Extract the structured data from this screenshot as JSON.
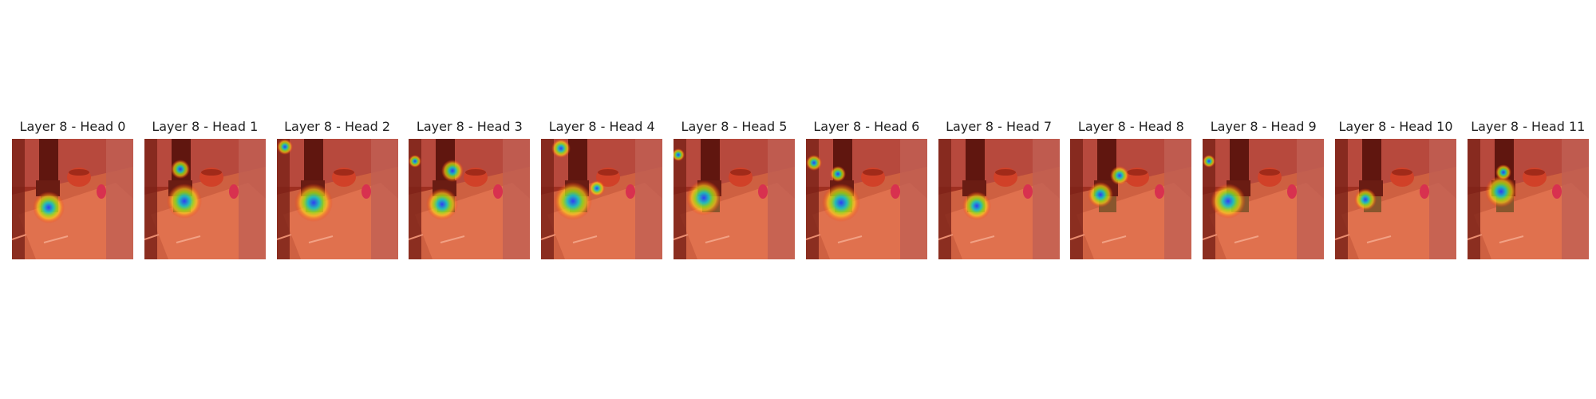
{
  "figure": {
    "panels": [
      {
        "title": "Layer 8 - Head 0",
        "hotspots": [
          {
            "cx": 46,
            "cy": 86,
            "r": 20
          }
        ]
      },
      {
        "title": "Layer 8 - Head 1",
        "hotspots": [
          {
            "cx": 50,
            "cy": 78,
            "r": 22
          },
          {
            "cx": 45,
            "cy": 38,
            "r": 12
          }
        ]
      },
      {
        "title": "Layer 8 - Head 2",
        "hotspots": [
          {
            "cx": 46,
            "cy": 80,
            "r": 24
          },
          {
            "cx": 10,
            "cy": 10,
            "r": 10
          }
        ]
      },
      {
        "title": "Layer 8 - Head 3",
        "hotspots": [
          {
            "cx": 42,
            "cy": 82,
            "r": 20
          },
          {
            "cx": 55,
            "cy": 40,
            "r": 14
          },
          {
            "cx": 8,
            "cy": 28,
            "r": 8
          }
        ]
      },
      {
        "title": "Layer 8 - Head 4",
        "hotspots": [
          {
            "cx": 40,
            "cy": 78,
            "r": 24
          },
          {
            "cx": 25,
            "cy": 12,
            "r": 12
          },
          {
            "cx": 70,
            "cy": 62,
            "r": 10
          }
        ]
      },
      {
        "title": "Layer 8 - Head 5",
        "hotspots": [
          {
            "cx": 38,
            "cy": 74,
            "r": 22
          },
          {
            "cx": 6,
            "cy": 20,
            "r": 8
          }
        ]
      },
      {
        "title": "Layer 8 - Head 6",
        "hotspots": [
          {
            "cx": 44,
            "cy": 80,
            "r": 24
          },
          {
            "cx": 10,
            "cy": 30,
            "r": 10
          },
          {
            "cx": 40,
            "cy": 44,
            "r": 10
          }
        ]
      },
      {
        "title": "Layer 8 - Head 7",
        "hotspots": [
          {
            "cx": 48,
            "cy": 84,
            "r": 18
          }
        ]
      },
      {
        "title": "Layer 8 - Head 8",
        "hotspots": [
          {
            "cx": 38,
            "cy": 70,
            "r": 16
          },
          {
            "cx": 62,
            "cy": 46,
            "r": 12
          }
        ]
      },
      {
        "title": "Layer 8 - Head 9",
        "hotspots": [
          {
            "cx": 32,
            "cy": 78,
            "r": 22
          },
          {
            "cx": 8,
            "cy": 28,
            "r": 8
          }
        ]
      },
      {
        "title": "Layer 8 - Head 10",
        "hotspots": [
          {
            "cx": 38,
            "cy": 76,
            "r": 14
          }
        ]
      },
      {
        "title": "Layer 8 - Head 11",
        "hotspots": [
          {
            "cx": 42,
            "cy": 66,
            "r": 20
          },
          {
            "cx": 45,
            "cy": 42,
            "r": 10
          }
        ]
      }
    ]
  }
}
